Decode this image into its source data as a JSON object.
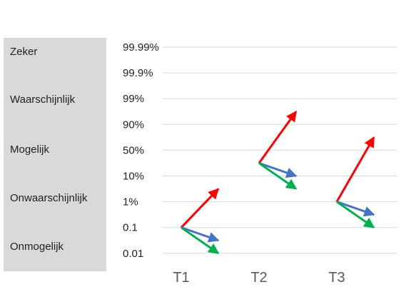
{
  "categories_panel": {
    "labels": [
      "Zeker",
      "Waarschijnlijk",
      "Mogelijk",
      "Onwaarschijnlijk",
      "Onmogelijk"
    ],
    "background": "#d9d9d9"
  },
  "chart_data": {
    "type": "line",
    "title": "",
    "xlabel": "",
    "ylabel": "",
    "x_categories": [
      "T1",
      "T2",
      "T3"
    ],
    "y_ticks": [
      "99.99%",
      "99.9%",
      "99%",
      "90%",
      "50%",
      "10%",
      "1%",
      "0.1",
      "0.01"
    ],
    "grid": true,
    "series": [
      {
        "color": "#ff0000",
        "values": [
          {
            "x": "T1",
            "from": "0.1",
            "to": "1% to 10%"
          },
          {
            "x": "T2",
            "from": "10% to 50%",
            "to": "90% to 99%"
          },
          {
            "x": "T3",
            "from": "1%",
            "to": "50% to 90%"
          }
        ]
      },
      {
        "color": "#4472c4",
        "values": [
          {
            "x": "T1",
            "from": "0.1",
            "to": "0.01 to 0.1"
          },
          {
            "x": "T2",
            "from": "10% to 50%",
            "to": "10%"
          },
          {
            "x": "T3",
            "from": "1%",
            "to": "0.1 to 1%"
          }
        ]
      },
      {
        "color": "#00b050",
        "values": [
          {
            "x": "T1",
            "from": "0.1",
            "to": "0.01"
          },
          {
            "x": "T2",
            "from": "10% to 50%",
            "to": "1% to 10%"
          },
          {
            "x": "T3",
            "from": "1%",
            "to": "0.1"
          }
        ]
      }
    ]
  }
}
